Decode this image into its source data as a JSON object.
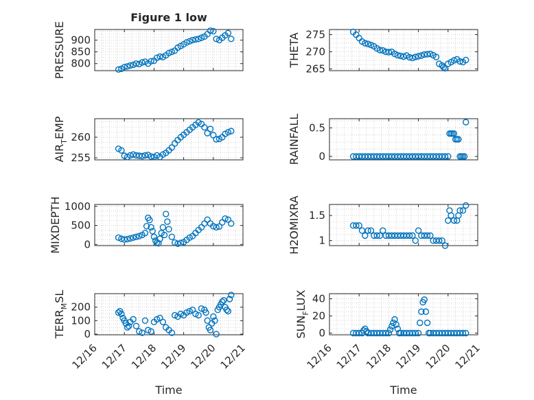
{
  "figure_title": "Figure 1 low",
  "colors": {
    "marker": "#0072BD",
    "axis": "#262626",
    "grid": "#c8c8c8"
  },
  "chart_data": [
    {
      "type": "scatter",
      "id": "pressure",
      "ylabel": "PRESSURE",
      "ylim": [
        770,
        945
      ],
      "yticks": [
        800,
        850,
        900
      ],
      "yticklabels": [
        "800",
        "850",
        "900"
      ],
      "x": [
        16.8,
        16.9,
        17.0,
        17.1,
        17.2,
        17.3,
        17.4,
        17.5,
        17.6,
        17.7,
        17.8,
        17.9,
        18.0,
        18.1,
        18.2,
        18.3,
        18.4,
        18.5,
        18.6,
        18.7,
        18.8,
        18.9,
        19.0,
        19.1,
        19.2,
        19.3,
        19.4,
        19.5,
        19.6,
        19.7,
        19.8,
        19.9,
        20.0,
        20.1,
        20.2,
        20.3,
        20.4,
        20.5,
        20.6
      ],
      "y": [
        775,
        778,
        785,
        788,
        792,
        795,
        800,
        798,
        805,
        808,
        800,
        810,
        812,
        825,
        830,
        828,
        835,
        845,
        850,
        855,
        868,
        875,
        882,
        890,
        895,
        900,
        903,
        905,
        910,
        915,
        925,
        940,
        938,
        905,
        900,
        910,
        920,
        930,
        905
      ]
    },
    {
      "type": "scatter",
      "id": "theta",
      "ylabel": "THETA",
      "ylim": [
        264.5,
        276.5
      ],
      "yticks": [
        265,
        270,
        275
      ],
      "yticklabels": [
        "265",
        "270",
        "275"
      ],
      "x": [
        16.8,
        16.9,
        17.0,
        17.1,
        17.2,
        17.3,
        17.4,
        17.5,
        17.6,
        17.7,
        17.8,
        17.9,
        18.0,
        18.1,
        18.2,
        18.3,
        18.4,
        18.5,
        18.6,
        18.7,
        18.8,
        18.9,
        19.0,
        19.1,
        19.2,
        19.3,
        19.4,
        19.5,
        19.6,
        19.7,
        19.8,
        19.85,
        19.9,
        20.0,
        20.1,
        20.2,
        20.3,
        20.4,
        20.5,
        20.6
      ],
      "y": [
        275.8,
        275.0,
        274.0,
        273.0,
        272.5,
        272.3,
        272.0,
        271.6,
        271.0,
        270.5,
        270.4,
        270.0,
        269.9,
        270.0,
        269.4,
        269.0,
        268.8,
        268.6,
        268.9,
        268.4,
        268.2,
        268.5,
        268.7,
        268.9,
        269.2,
        269.3,
        269.4,
        269.0,
        268.5,
        266.5,
        266.0,
        265.5,
        265.2,
        266.5,
        267.0,
        267.5,
        267.8,
        267.2,
        267.0,
        267.6
      ]
    },
    {
      "type": "scatter",
      "id": "air_temp",
      "ylabel": "AIR",
      "ylabel_sub": "T",
      "ylabel_tail": "EMP",
      "ylim": [
        254.5,
        264.5
      ],
      "yticks": [
        255,
        260
      ],
      "yticklabels": [
        "255",
        "260"
      ],
      "x": [
        16.8,
        16.9,
        17.0,
        17.1,
        17.2,
        17.3,
        17.4,
        17.5,
        17.6,
        17.7,
        17.8,
        17.9,
        18.0,
        18.1,
        18.2,
        18.3,
        18.4,
        18.5,
        18.6,
        18.7,
        18.8,
        18.9,
        19.0,
        19.1,
        19.2,
        19.3,
        19.4,
        19.5,
        19.6,
        19.7,
        19.8,
        19.9,
        20.0,
        20.1,
        20.2,
        20.3,
        20.4,
        20.5,
        20.6
      ],
      "y": [
        257.2,
        256.8,
        255.5,
        255.2,
        255.6,
        255.8,
        255.6,
        255.5,
        255.4,
        255.6,
        255.7,
        255.3,
        255.2,
        255.6,
        255.2,
        255.8,
        256.2,
        256.8,
        257.5,
        258.5,
        259.3,
        260.0,
        260.6,
        261.2,
        261.8,
        262.4,
        263.0,
        263.6,
        263.2,
        262.4,
        261.0,
        262.0,
        260.5,
        259.5,
        259.6,
        260.0,
        260.8,
        261.2,
        261.5
      ]
    },
    {
      "type": "scatter",
      "id": "rainfall",
      "ylabel": "RAINFALL",
      "ylim": [
        -0.06,
        0.66
      ],
      "yticks": [
        0,
        0.5
      ],
      "yticklabels": [
        "0",
        "0.5"
      ],
      "x": [
        16.8,
        16.9,
        17.0,
        17.1,
        17.2,
        17.3,
        17.4,
        17.5,
        17.6,
        17.7,
        17.8,
        17.9,
        18.0,
        18.1,
        18.2,
        18.3,
        18.4,
        18.5,
        18.6,
        18.7,
        18.8,
        18.9,
        19.0,
        19.1,
        19.2,
        19.3,
        19.4,
        19.5,
        19.6,
        19.7,
        19.8,
        19.9,
        20.0,
        20.05,
        20.1,
        20.15,
        20.2,
        20.25,
        20.3,
        20.35,
        20.4,
        20.45,
        20.5,
        20.55,
        20.6
      ],
      "y": [
        0,
        0,
        0,
        0,
        0,
        0,
        0,
        0,
        0,
        0,
        0,
        0,
        0,
        0,
        0,
        0,
        0,
        0,
        0,
        0,
        0,
        0,
        0,
        0,
        0,
        0,
        0,
        0,
        0,
        0,
        0,
        0,
        0,
        0.4,
        0.4,
        0.4,
        0.4,
        0.3,
        0.3,
        0.3,
        0,
        0,
        0,
        0,
        0.6
      ]
    },
    {
      "type": "scatter",
      "id": "mixdepth",
      "ylabel": "MIXDEPTH",
      "ylim": [
        -30,
        1050
      ],
      "yticks": [
        0,
        500,
        1000
      ],
      "yticklabels": [
        "0",
        "500",
        "1000"
      ],
      "x": [
        16.8,
        16.9,
        17.0,
        17.1,
        17.2,
        17.3,
        17.4,
        17.5,
        17.6,
        17.7,
        17.75,
        17.8,
        17.85,
        17.9,
        17.95,
        18.0,
        18.05,
        18.1,
        18.15,
        18.2,
        18.25,
        18.3,
        18.35,
        18.4,
        18.45,
        18.5,
        18.6,
        18.7,
        18.8,
        18.9,
        19.0,
        19.1,
        19.2,
        19.3,
        19.4,
        19.5,
        19.6,
        19.7,
        19.8,
        19.9,
        20.0,
        20.1,
        20.2,
        20.3,
        20.4,
        20.5,
        20.6
      ],
      "y": [
        180,
        150,
        130,
        140,
        160,
        180,
        200,
        220,
        250,
        300,
        480,
        700,
        640,
        450,
        350,
        200,
        100,
        50,
        30,
        150,
        300,
        450,
        250,
        800,
        600,
        400,
        200,
        50,
        20,
        40,
        60,
        120,
        180,
        220,
        300,
        380,
        450,
        550,
        650,
        550,
        480,
        450,
        470,
        580,
        680,
        650,
        550
      ]
    },
    {
      "type": "scatter",
      "id": "h2omixra",
      "ylabel": "H2OMIXRA",
      "ylim": [
        0.9,
        1.72
      ],
      "yticks": [
        1,
        1.5
      ],
      "yticklabels": [
        "1",
        "1.5"
      ],
      "x": [
        16.8,
        16.9,
        17.0,
        17.1,
        17.2,
        17.3,
        17.4,
        17.5,
        17.6,
        17.7,
        17.8,
        17.9,
        18.0,
        18.1,
        18.2,
        18.3,
        18.4,
        18.5,
        18.6,
        18.7,
        18.8,
        18.9,
        19.0,
        19.1,
        19.2,
        19.3,
        19.4,
        19.5,
        19.6,
        19.7,
        19.8,
        19.9,
        20.0,
        20.05,
        20.1,
        20.2,
        20.3,
        20.35,
        20.4,
        20.5,
        20.6
      ],
      "y": [
        1.3,
        1.3,
        1.3,
        1.2,
        1.1,
        1.2,
        1.2,
        1.1,
        1.1,
        1.1,
        1.2,
        1.1,
        1.1,
        1.1,
        1.1,
        1.1,
        1.1,
        1.1,
        1.1,
        1.1,
        1.1,
        1.0,
        1.2,
        1.1,
        1.1,
        1.1,
        1.1,
        1.0,
        1.0,
        1.0,
        1.0,
        0.9,
        1.4,
        1.6,
        1.5,
        1.4,
        1.4,
        1.5,
        1.6,
        1.6,
        1.7
      ]
    },
    {
      "type": "scatter",
      "id": "terr_msl",
      "ylabel": "TERR",
      "ylabel_sub": "M",
      "ylabel_tail": "SL",
      "ylim": [
        -5,
        300
      ],
      "yticks": [
        0,
        100,
        200
      ],
      "yticklabels": [
        "0",
        "100",
        "200"
      ],
      "x": [
        16.8,
        16.85,
        16.9,
        16.95,
        17.0,
        17.05,
        17.1,
        17.15,
        17.2,
        17.3,
        17.4,
        17.5,
        17.6,
        17.7,
        17.8,
        17.9,
        18.0,
        18.1,
        18.2,
        18.3,
        18.4,
        18.5,
        18.6,
        18.7,
        18.8,
        18.9,
        19.0,
        19.1,
        19.2,
        19.3,
        19.4,
        19.5,
        19.6,
        19.7,
        19.75,
        19.8,
        19.85,
        19.9,
        19.95,
        20.0,
        20.05,
        20.1,
        20.15,
        20.2,
        20.25,
        20.3,
        20.35,
        20.4,
        20.45,
        20.5,
        20.55,
        20.6
      ],
      "y": [
        160,
        170,
        150,
        120,
        100,
        80,
        50,
        60,
        90,
        110,
        60,
        20,
        10,
        100,
        30,
        20,
        90,
        110,
        120,
        90,
        50,
        30,
        10,
        140,
        130,
        150,
        140,
        160,
        170,
        180,
        150,
        140,
        190,
        180,
        160,
        100,
        50,
        30,
        80,
        130,
        100,
        0,
        180,
        200,
        220,
        240,
        250,
        200,
        180,
        170,
        260,
        290
      ]
    },
    {
      "type": "scatter",
      "id": "sun_flux",
      "ylabel": "SUN",
      "ylabel_sub": "F",
      "ylabel_tail": "LUX",
      "ylim": [
        -2,
        46
      ],
      "yticks": [
        0,
        20,
        40
      ],
      "yticklabels": [
        "0",
        "20",
        "40"
      ],
      "x": [
        16.8,
        16.9,
        17.0,
        17.1,
        17.15,
        17.2,
        17.25,
        17.3,
        17.4,
        17.5,
        17.6,
        17.7,
        17.8,
        17.9,
        18.0,
        18.05,
        18.1,
        18.15,
        18.2,
        18.25,
        18.3,
        18.35,
        18.4,
        18.5,
        18.6,
        18.7,
        18.8,
        18.9,
        19.0,
        19.05,
        19.1,
        19.15,
        19.2,
        19.25,
        19.3,
        19.35,
        19.4,
        19.5,
        19.6,
        19.7,
        19.8,
        19.9,
        20.0,
        20.1,
        20.2,
        20.3,
        20.4,
        20.5,
        20.6
      ],
      "y": [
        0,
        0,
        0,
        0,
        3,
        5,
        2,
        0,
        0,
        0,
        0,
        0,
        0,
        0,
        0,
        4,
        8,
        12,
        16,
        10,
        5,
        0,
        0,
        0,
        0,
        0,
        0,
        0,
        0,
        12,
        25,
        36,
        39,
        25,
        12,
        0,
        0,
        0,
        0,
        0,
        0,
        0,
        0,
        0,
        0,
        0,
        0,
        0,
        0
      ]
    }
  ],
  "xaxis": {
    "label": "Time",
    "lim": [
      16,
      21
    ],
    "ticks": [
      16,
      17,
      18,
      19,
      20,
      21
    ],
    "ticklabels": [
      "12/16",
      "12/17",
      "12/18",
      "12/19",
      "12/20",
      "12/21"
    ]
  }
}
